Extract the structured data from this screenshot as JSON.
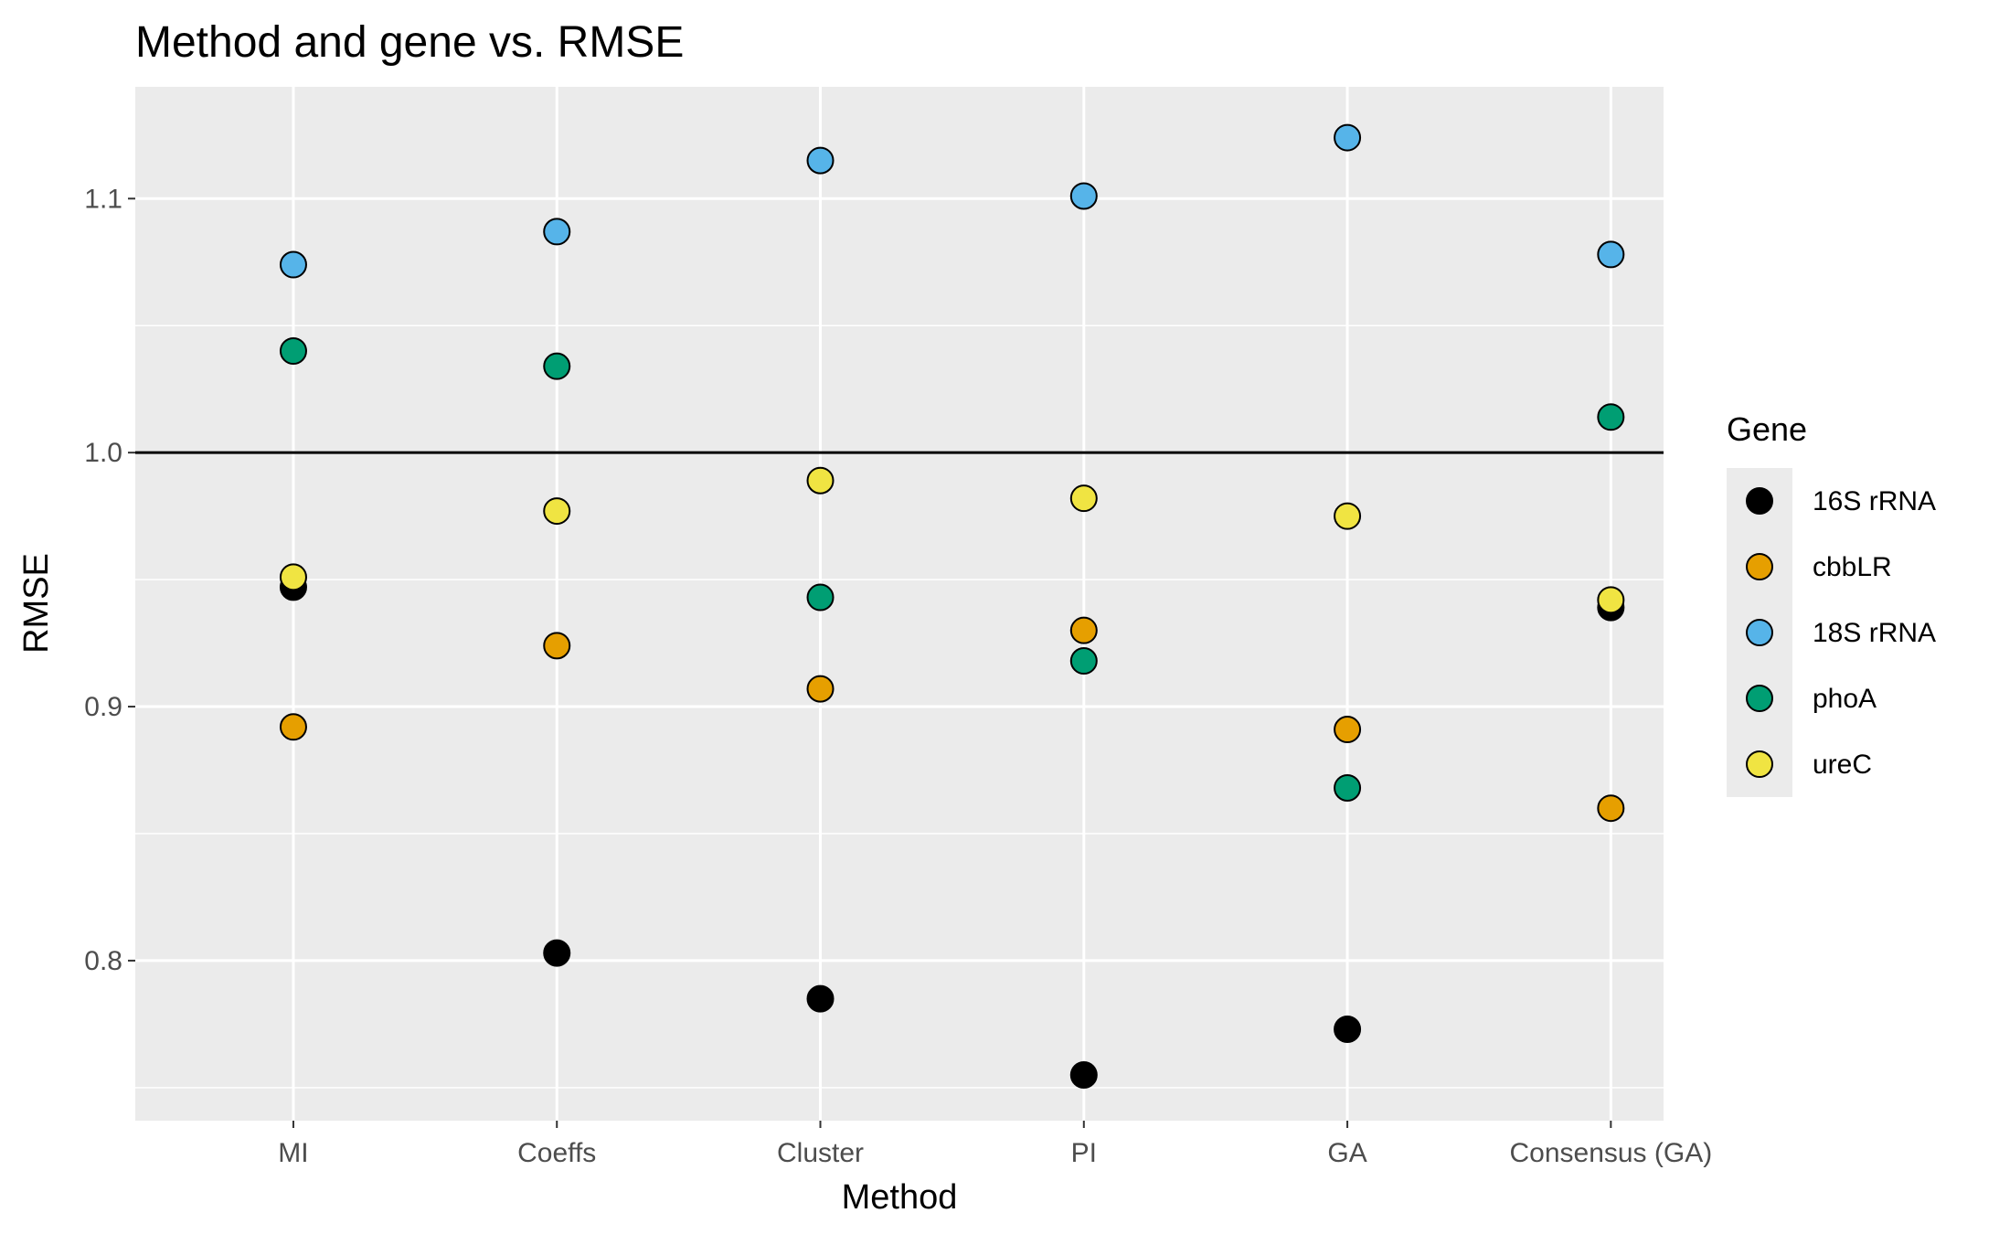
{
  "chart_data": {
    "type": "scatter",
    "title": "Method and gene vs. RMSE",
    "xlabel": "Method",
    "ylabel": "RMSE",
    "categories": [
      "MI",
      "Coeffs",
      "Cluster",
      "PI",
      "GA",
      "Consensus (GA)"
    ],
    "ylim": [
      0.737,
      1.144
    ],
    "yticks": [
      0.8,
      0.9,
      1.0,
      1.1
    ],
    "yticks_labels": [
      "0.8",
      "0.9",
      "1.0",
      "1.1"
    ],
    "reference_line": 1.0,
    "grid": true,
    "legend": {
      "title": "Gene",
      "position": "right"
    },
    "series": [
      {
        "name": "16S rRNA",
        "color": "#000000",
        "values": [
          0.947,
          0.803,
          0.785,
          0.755,
          0.773,
          0.939
        ]
      },
      {
        "name": "cbbLR",
        "color": "#E69F00",
        "values": [
          0.892,
          0.924,
          0.907,
          0.93,
          0.891,
          0.86
        ]
      },
      {
        "name": "18S rRNA",
        "color": "#56B4E9",
        "values": [
          1.074,
          1.087,
          1.115,
          1.101,
          1.124,
          1.078
        ]
      },
      {
        "name": "phoA",
        "color": "#009E73",
        "values": [
          1.04,
          1.034,
          0.943,
          0.918,
          0.868,
          1.014
        ]
      },
      {
        "name": "ureC",
        "color": "#F0E442",
        "values": [
          0.951,
          0.977,
          0.989,
          0.982,
          0.975,
          0.942
        ]
      }
    ]
  }
}
